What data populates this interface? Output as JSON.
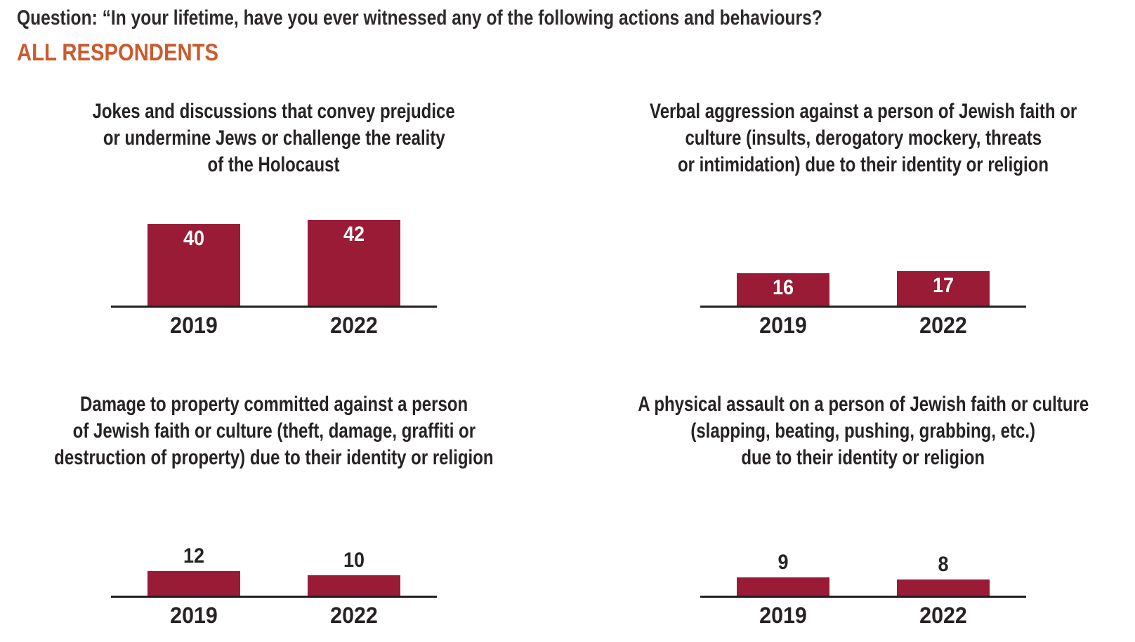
{
  "header": {
    "question": "Question: “In your lifetime, have you ever witnessed any of the following actions and behaviours?",
    "audience": "ALL RESPONDENTS"
  },
  "colors": {
    "bar": "#9A1B36",
    "accent": "#CB5A2E",
    "text": "#272324",
    "axis": "#231F20",
    "value_label_inside": "#FFFFFF"
  },
  "chart_data": [
    {
      "type": "bar",
      "title": "Jokes and discussions that convey prejudice or undermine Jews or challenge the reality of the Holocaust",
      "title_lines": [
        "Jokes and discussions that convey prejudice",
        "or undermine Jews or challenge the reality",
        "of the Holocaust"
      ],
      "categories": [
        "2019",
        "2022"
      ],
      "values": [
        40,
        42
      ],
      "value_label_position": "inside",
      "grid": false,
      "legend": "none"
    },
    {
      "type": "bar",
      "title": "Verbal aggression against a person of Jewish faith or culture (insults, derogatory mockery, threats or intimidation) due to their identity or religion",
      "title_lines": [
        "Verbal aggression against a person of Jewish faith or",
        "culture (insults, derogatory mockery, threats",
        "or intimidation) due to their identity or religion"
      ],
      "categories": [
        "2019",
        "2022"
      ],
      "values": [
        16,
        17
      ],
      "value_label_position": "inside",
      "grid": false,
      "legend": "none"
    },
    {
      "type": "bar",
      "title": "Damage to property committed against a person of Jewish faith or culture (theft, damage, graffiti or destruction of property) due to their identity or religion",
      "title_lines": [
        "Damage to property committed against a person",
        "of Jewish faith or culture (theft, damage, graffiti or",
        "destruction of property) due to their identity or religion"
      ],
      "categories": [
        "2019",
        "2022"
      ],
      "values": [
        12,
        10
      ],
      "value_label_position": "above",
      "grid": false,
      "legend": "none"
    },
    {
      "type": "bar",
      "title": "A physical assault on a person of Jewish faith or culture (slapping, beating, pushing, grabbing, etc.) due to their identity or religion",
      "title_lines": [
        "A physical assault on a person of Jewish faith or culture",
        "(slapping, beating, pushing, grabbing, etc.)",
        "due to their identity or religion"
      ],
      "categories": [
        "2019",
        "2022"
      ],
      "values": [
        9,
        8
      ],
      "value_label_position": "above",
      "grid": false,
      "legend": "none"
    }
  ]
}
